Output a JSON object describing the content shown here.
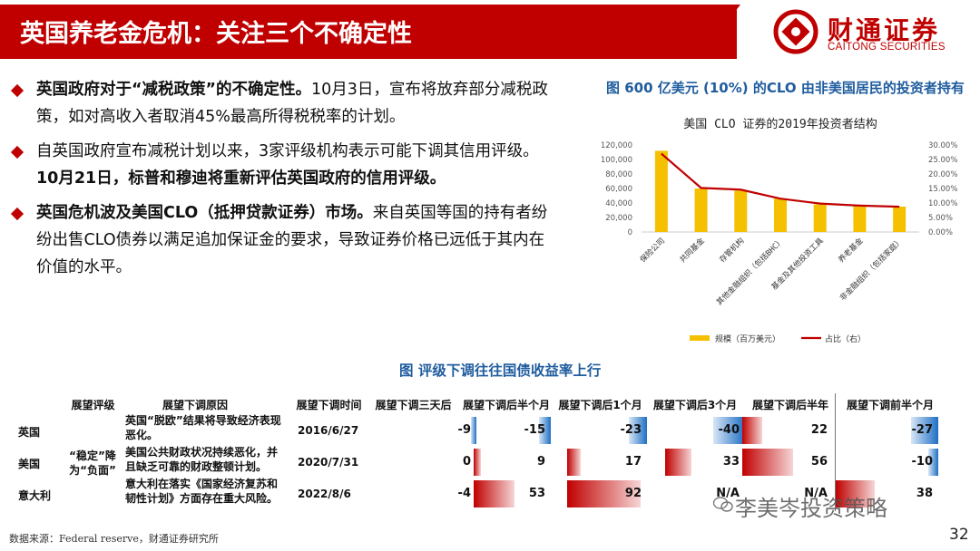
{
  "header": {
    "title": "英国养老金危机：关注三个不确定性",
    "logo_cn": "财通证券",
    "logo_en": "CAITONG SECURITIES",
    "accent_color": "#c00000"
  },
  "bullets": [
    {
      "bold": "英国政府对于“减税政策”的不确定性。",
      "text": "10月3日，宣布将放弃部分减税政策，如对高收入者取消45%最高所得税税率的计划。"
    },
    {
      "text": "自英国政府宣布减税计划以来，3家评级机构表示可能下调其信用评级。",
      "bold": "10月21日，标普和穆迪将重新评估英国政府的信用评级。"
    },
    {
      "bold": "英国危机波及美国CLO（抵押贷款证券）市场。",
      "text": "来自英国等国的持有者纷纷出售CLO债券以满足追加保证金的要求，导致证券价格已远低于其内在价值的水平。"
    }
  ],
  "chart_title": "图  600 亿美元 (10%) 的CLO 由非美国居民的投资者持有",
  "chart_data": {
    "type": "bar",
    "title": "美国 CLO 证券的2019年投资者结构",
    "categories": [
      "保险公司",
      "共同基金",
      "存管机构",
      "其他金融组织（包括BHC）",
      "基金及其他投资工具",
      "养老基金",
      "非金融组织（包括家庭）"
    ],
    "series": [
      {
        "name": "规模（百万美元）",
        "type": "bar",
        "axis": "left",
        "color": "#f5c000",
        "values": [
          112000,
          60000,
          57000,
          46000,
          38000,
          36000,
          35000
        ]
      },
      {
        "name": "占比（右）",
        "type": "line",
        "axis": "right",
        "color": "#c00000",
        "values": [
          0.27,
          0.152,
          0.146,
          0.115,
          0.098,
          0.091,
          0.087
        ]
      }
    ],
    "y_left": {
      "min": 0,
      "max": 120000,
      "ticks": [
        "0",
        "20,000",
        "40,000",
        "60,000",
        "80,000",
        "100,000",
        "120,000"
      ]
    },
    "y_right": {
      "min": 0,
      "max": 0.3,
      "ticks": [
        "0.00%",
        "5.00%",
        "10.00%",
        "15.00%",
        "20.00%",
        "25.00%",
        "30.00%"
      ]
    },
    "legend": "bottom"
  },
  "table": {
    "title": "图 评级下调往往国债收益率上行",
    "headers": [
      "展望评级",
      "展望下调原因",
      "展望下调时间",
      "展望下调三天后",
      "展望下调后半个月",
      "展望下调后1个月",
      "展望下调后3个月",
      "展望下调后半年",
      "展望下调前半个月"
    ],
    "rows": [
      {
        "country": "英国",
        "rating": "",
        "reason": "英国“脱欧”结果将导致经济表现恶化。",
        "date": "2016/6/27",
        "values": [
          "-9",
          "-15",
          "-23",
          "-40",
          "22",
          "-27"
        ]
      },
      {
        "country": "美国",
        "rating": "“稳定”降为“负面”",
        "reason": "美国公共财政状况持续恶化，并且缺乏可靠的财政整顿计划。",
        "date": "2020/7/31",
        "values": [
          "0",
          "9",
          "17",
          "33",
          "56",
          "-10"
        ]
      },
      {
        "country": "意大利",
        "rating": "",
        "reason": "意大利在落实《国家经济复苏和韧性计划》方面存在重大风险。",
        "date": "2022/8/6",
        "values": [
          "-4",
          "53",
          "92",
          "N/A",
          "N/A",
          "38"
        ]
      }
    ],
    "positive_color": "#c00000",
    "negative_color": "#1f6fc4"
  },
  "footnote": "数据来源：Federal reserve，财通证券研究所",
  "watermark": "李美岑投资策略",
  "page_number": "32"
}
